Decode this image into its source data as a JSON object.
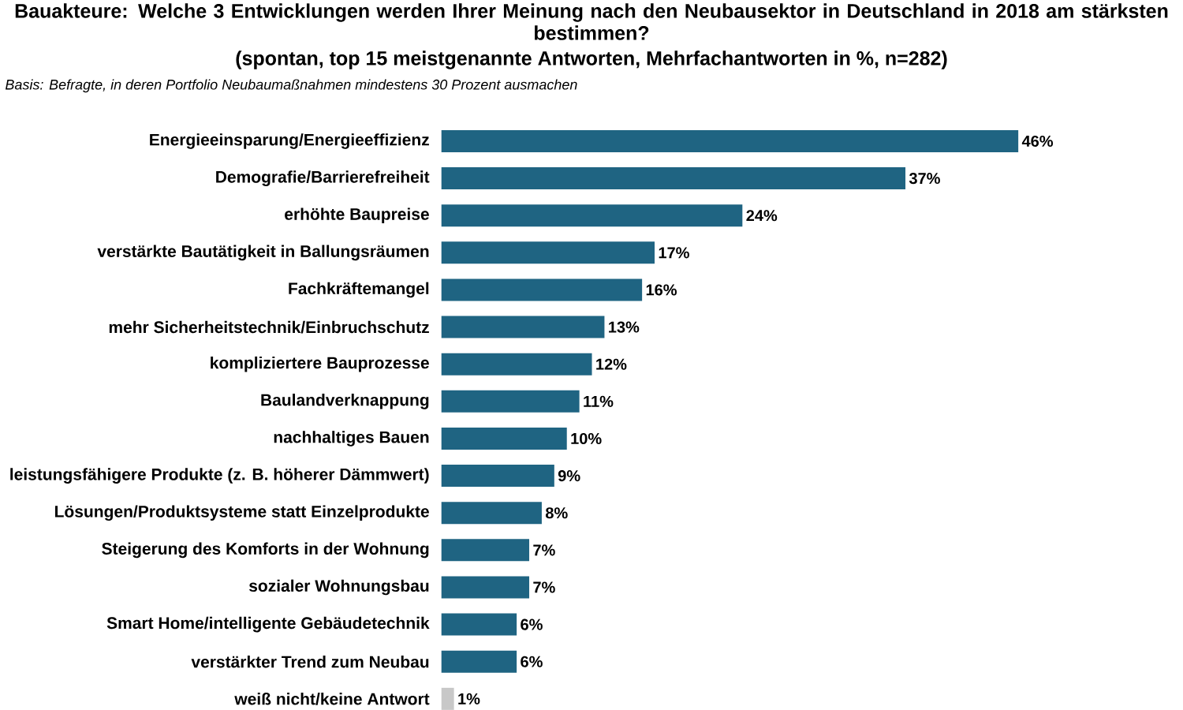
{
  "chart_data": {
    "type": "bar",
    "orientation": "horizontal",
    "title": "Bauakteure: Welche 3 Entwicklungen werden Ihrer Meinung nach den Neubausektor in Deutschland in 2018 am stärksten bestimmen?",
    "subtitle": "(spontan, top 15 meistgenannte Antworten, Mehrfachantworten in %, n=282)",
    "annotations": [
      "Basis: Befragte, in deren Portfolio Neubaumaßnahmen mindestens 30 Prozent ausmachen"
    ],
    "categories": [
      "Energieeinsparung/Energieeffizienz",
      "Demografie/Barrierefreiheit",
      "erhöhte Baupreise",
      "verstärkte Bautätigkeit in Ballungsräumen",
      "Fachkräftemangel",
      "mehr Sicherheitstechnik/Einbruchschutz",
      "kompliziertere Bauprozesse",
      "Baulandverknappung",
      "nachhaltiges Bauen",
      "leistungsfähigere Produkte (z. B. höherer Dämmwert)",
      "Lösungen/Produktsysteme statt Einzelprodukte",
      "Steigerung des Komforts in der Wohnung",
      "sozialer Wohnungsbau",
      "Smart Home/intelligente Gebäudetechnik",
      "verstärkter Trend zum Neubau",
      "weiß nicht/keine Antwort"
    ],
    "values": [
      46,
      37,
      24,
      17,
      16,
      13,
      12,
      11,
      10,
      9,
      8,
      7,
      7,
      6,
      6,
      1
    ],
    "value_labels": [
      "46%",
      "37%",
      "24%",
      "17%",
      "16%",
      "13%",
      "12%",
      "11%",
      "10%",
      "9%",
      "8%",
      "7%",
      "7%",
      "6%",
      "6%",
      "1%"
    ],
    "colors": [
      "#1f6482",
      "#1f6482",
      "#1f6482",
      "#1f6482",
      "#1f6482",
      "#1f6482",
      "#1f6482",
      "#1f6482",
      "#1f6482",
      "#1f6482",
      "#1f6482",
      "#1f6482",
      "#1f6482",
      "#1f6482",
      "#1f6482",
      "#c8c8c8"
    ]
  }
}
